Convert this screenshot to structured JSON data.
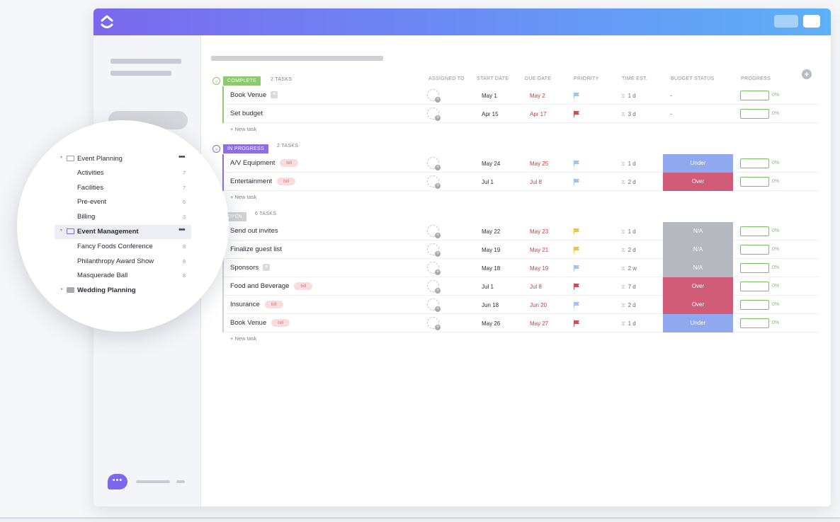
{
  "colors": {
    "brand": "#7b68ee",
    "complete": "#8cc96f",
    "in_progress": "#8e6fe0",
    "open": "#d0d2d6",
    "under": "#8fa8ee",
    "over": "#d05c78",
    "na": "#b5b8bf",
    "progress": "#77c35f",
    "due_red": "#d23c3c"
  },
  "columns": {
    "assigned_to": "ASSIGNED TO",
    "start_date": "START DATE",
    "due_date": "DUE DATE",
    "priority": "PRIORITY",
    "time_est": "TIME EST.",
    "budget_status": "BUDGET STATUS",
    "progress": "PROGRESS"
  },
  "new_task_label": "+ New task",
  "groups": {
    "complete": {
      "label": "COMPLETE",
      "count": "2 TASKS",
      "tasks": [
        {
          "name": "Book Venue",
          "tag": "gray",
          "start": "May 1",
          "due": "May 2",
          "priority": "blue",
          "time": "1 d",
          "budget": "-",
          "progress": "0%"
        },
        {
          "name": "Set budget",
          "tag": "",
          "start": "Apr 15",
          "due": "Apr 17",
          "priority": "red",
          "time": "3 d",
          "budget": "-",
          "progress": "0%"
        }
      ]
    },
    "in_progress": {
      "label": "IN PROGRESS",
      "count": "2 TASKS",
      "tasks": [
        {
          "name": "A/V Equipment",
          "tag": "bill",
          "start": "May 24",
          "due": "May 25",
          "priority": "blue",
          "time": "1 d",
          "budget": "Under",
          "progress": "0%"
        },
        {
          "name": "Entertainment",
          "tag": "bill",
          "start": "Jul 1",
          "due": "Jul 8",
          "priority": "blue",
          "time": "2 d",
          "budget": "Over",
          "progress": "0%"
        }
      ]
    },
    "open": {
      "label": "OPEN",
      "count": "6 TASKS",
      "tasks": [
        {
          "name": "Send out invites",
          "tag": "",
          "start": "May 22",
          "due": "May 23",
          "priority": "yellow",
          "time": "1 d",
          "budget": "N/A",
          "progress": "0%"
        },
        {
          "name": "Finalize guest list",
          "tag": "",
          "start": "May 19",
          "due": "May 21",
          "priority": "yellow",
          "time": "2 d",
          "budget": "N/A",
          "progress": "0%"
        },
        {
          "name": "Sponsors",
          "tag": "gray",
          "start": "May 18",
          "due": "May 19",
          "priority": "blue",
          "time": "2 w",
          "budget": "N/A",
          "progress": "0%"
        },
        {
          "name": "Food and Beverage",
          "tag": "bill",
          "start": "Jul 1",
          "due": "Jul 8",
          "priority": "red",
          "time": "7 d",
          "budget": "Over",
          "progress": "0%"
        },
        {
          "name": "Insurance",
          "tag": "bill",
          "start": "Jun 18",
          "due": "Jun 20",
          "priority": "blue",
          "time": "2 d",
          "budget": "Over",
          "progress": "0%"
        },
        {
          "name": "Book Venue",
          "tag": "bill",
          "start": "May 26",
          "due": "May 27",
          "priority": "red",
          "time": "1 d",
          "budget": "Under",
          "progress": "0%"
        }
      ]
    }
  },
  "tag_bill_label": "bill",
  "tree": {
    "event_planning": {
      "label": "Event Planning",
      "more": "•••",
      "items": [
        {
          "label": "Activities",
          "count": "7"
        },
        {
          "label": "Facilities",
          "count": "7"
        },
        {
          "label": "Pre-event",
          "count": "6"
        },
        {
          "label": "Billing",
          "count": "3"
        }
      ]
    },
    "event_management": {
      "label": "Event Management",
      "more": "•••",
      "items": [
        {
          "label": "Fancy Foods Conference",
          "count": "8"
        },
        {
          "label": "Philanthropy Award Show",
          "count": "8"
        },
        {
          "label": "Masquerade Ball",
          "count": "8"
        }
      ]
    },
    "wedding_planning": {
      "label": "Wedding Planning"
    }
  },
  "chat": {
    "icon": "chat-bubble-icon",
    "glyph": "•••"
  }
}
